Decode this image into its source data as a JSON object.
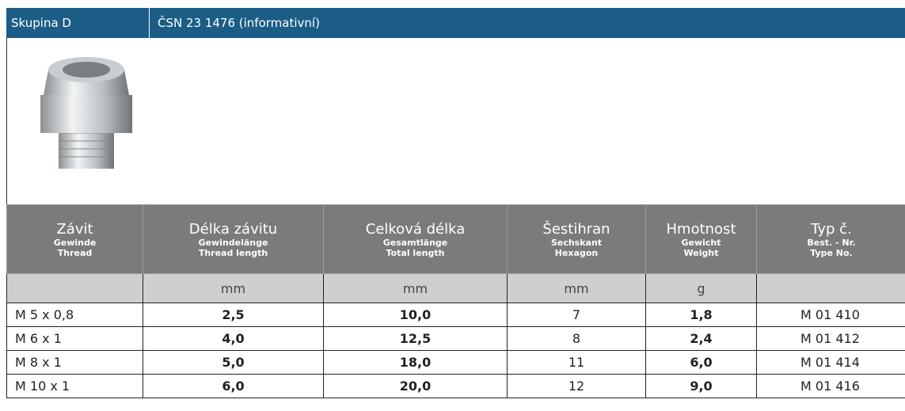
{
  "header": {
    "group": "Skupina D",
    "standard": "ČSN 23 1476 (informativní)"
  },
  "table": {
    "columns": [
      {
        "name": "Závit",
        "de": "Gewinde",
        "en": "Thread"
      },
      {
        "name": "Délka závitu",
        "de": "Gewindelänge",
        "en": "Thread length"
      },
      {
        "name": "Celková délka",
        "de": "Gesamtlänge",
        "en": "Total length"
      },
      {
        "name": "Šestihran",
        "de": "Sechskant",
        "en": "Hexagon"
      },
      {
        "name": "Hmotnost",
        "de": "Gewicht",
        "en": "Weight"
      },
      {
        "name": "Typ č.",
        "de": "Best. - Nr.",
        "en": "Type No."
      }
    ],
    "units": [
      "mm",
      "mm",
      "mm",
      "g"
    ],
    "rows": [
      [
        "M 5 x 0,8",
        "2,5",
        "10,0",
        "7",
        "1,8",
        "M 01 410"
      ],
      [
        "M 6 x 1",
        "4,0",
        "12,5",
        "8",
        "2,4",
        "M 01 412"
      ],
      [
        "M 8 x 1",
        "5,0",
        "18,0",
        "11",
        "6,0",
        "M 01 414"
      ],
      [
        "M 10 x 1",
        "6,0",
        "20,0",
        "12",
        "9,0",
        "M 01 416"
      ]
    ]
  }
}
